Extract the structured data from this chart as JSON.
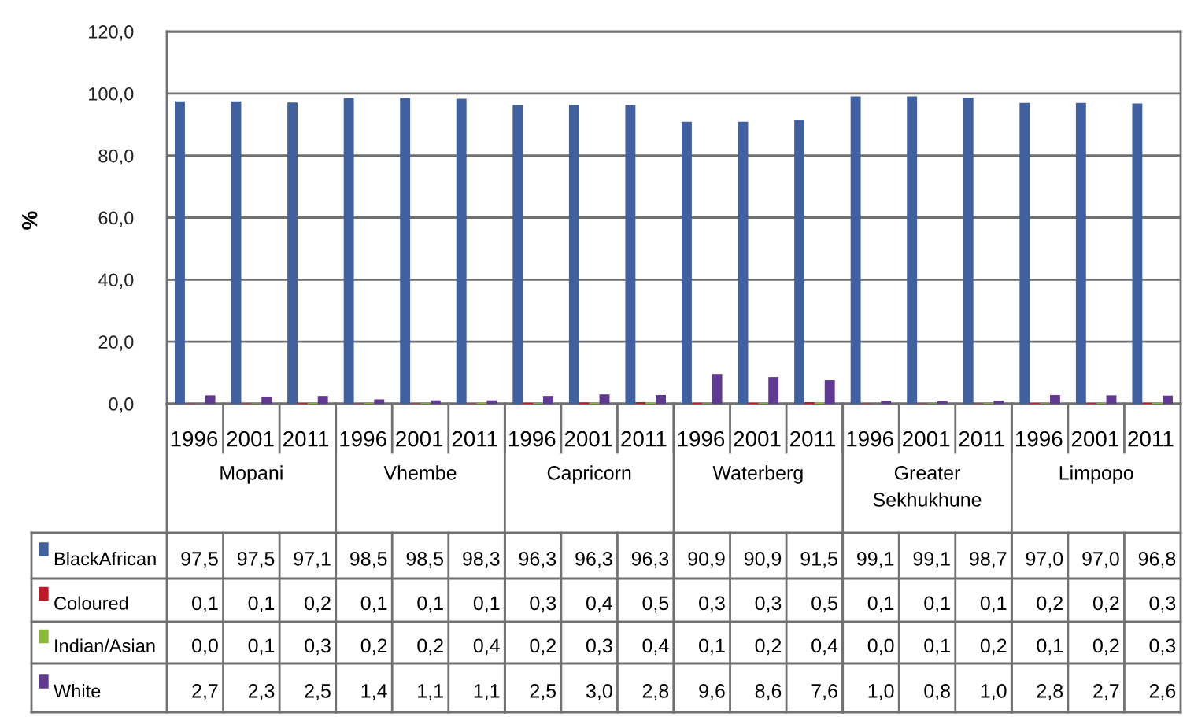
{
  "chart_data": {
    "type": "bar",
    "ylabel": "%",
    "categories": [
      "1996",
      "2001",
      "2011",
      "1996",
      "2001",
      "2011",
      "1996",
      "2001",
      "2011",
      "1996",
      "2001",
      "2011",
      "1996",
      "2001",
      "2011",
      "1996",
      "2001",
      "2011"
    ],
    "annotations": [
      "Mopani",
      "Vhembe",
      "Capricorn",
      "Waterberg",
      "Greater\nSekhukhune",
      "Limpopo"
    ],
    "series": [
      {
        "name": "BlackAfrican",
        "color": "#4060a0",
        "values": [
          97.5,
          97.5,
          97.1,
          98.5,
          98.5,
          98.3,
          96.3,
          96.3,
          96.3,
          90.9,
          90.9,
          91.5,
          99.1,
          99.1,
          98.7,
          97.0,
          97.0,
          96.8
        ],
        "value_labels": [
          "97,5",
          "97,5",
          "97,1",
          "98,5",
          "98,5",
          "98,3",
          "96,3",
          "96,3",
          "96,3",
          "90,9",
          "90,9",
          "91,5",
          "99,1",
          "99,1",
          "98,7",
          "97,0",
          "97,0",
          "96,8"
        ]
      },
      {
        "name": "Coloured",
        "color": "#c0182a",
        "values": [
          0.1,
          0.1,
          0.2,
          0.1,
          0.1,
          0.1,
          0.3,
          0.4,
          0.5,
          0.3,
          0.3,
          0.5,
          0.1,
          0.1,
          0.1,
          0.2,
          0.2,
          0.3
        ],
        "value_labels": [
          "0,1",
          "0,1",
          "0,2",
          "0,1",
          "0,1",
          "0,1",
          "0,3",
          "0,4",
          "0,5",
          "0,3",
          "0,3",
          "0,5",
          "0,1",
          "0,1",
          "0,1",
          "0,2",
          "0,2",
          "0,3"
        ]
      },
      {
        "name": "Indian/Asian",
        "color": "#8ab83a",
        "values": [
          0.0,
          0.1,
          0.3,
          0.2,
          0.2,
          0.4,
          0.2,
          0.3,
          0.4,
          0.1,
          0.2,
          0.4,
          0.0,
          0.1,
          0.2,
          0.1,
          0.2,
          0.3
        ],
        "value_labels": [
          "0,0",
          "0,1",
          "0,3",
          "0,2",
          "0,2",
          "0,4",
          "0,2",
          "0,3",
          "0,4",
          "0,1",
          "0,2",
          "0,4",
          "0,0",
          "0,1",
          "0,2",
          "0,1",
          "0,2",
          "0,3"
        ]
      },
      {
        "name": "White",
        "color": "#603a90",
        "values": [
          2.7,
          2.3,
          2.5,
          1.4,
          1.1,
          1.1,
          2.5,
          3.0,
          2.8,
          9.6,
          8.6,
          7.6,
          1.0,
          0.8,
          1.0,
          2.8,
          2.7,
          2.6
        ],
        "value_labels": [
          "2,7",
          "2,3",
          "2,5",
          "1,4",
          "1,1",
          "1,1",
          "2,5",
          "3,0",
          "2,8",
          "9,6",
          "8,6",
          "7,6",
          "1,0",
          "0,8",
          "1,0",
          "2,8",
          "2,7",
          "2,6"
        ]
      }
    ],
    "ylim": [
      0,
      120
    ],
    "yticks": [
      {
        "value": 0,
        "label": "0,0"
      },
      {
        "value": 20,
        "label": "20,0"
      },
      {
        "value": 40,
        "label": "40,0"
      },
      {
        "value": 60,
        "label": "60,0"
      },
      {
        "value": 80,
        "label": "80,0"
      },
      {
        "value": 100,
        "label": "100,0"
      },
      {
        "value": 120,
        "label": "120,0"
      }
    ],
    "grid": "y",
    "legend": "bottom"
  }
}
